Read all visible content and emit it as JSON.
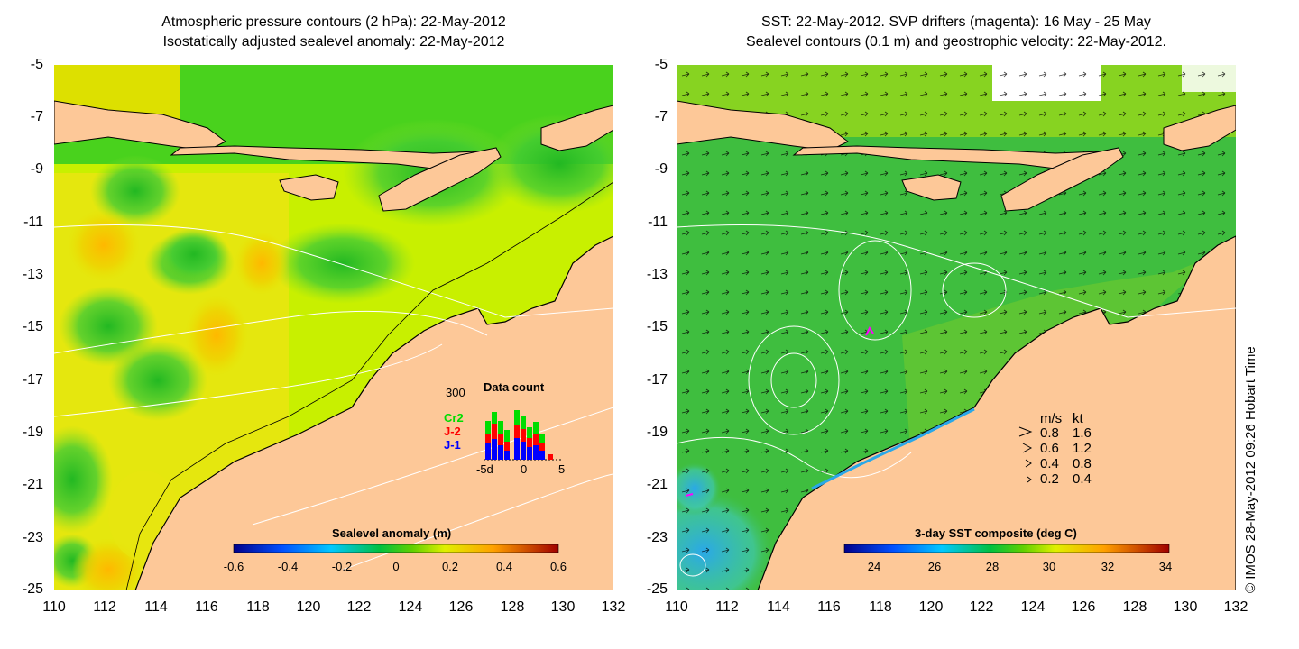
{
  "left_panel": {
    "title_line1": "Atmospheric pressure contours (2 hPa): 22-May-2012",
    "title_line2": "Isostatically adjusted sealevel anomaly: 22-May-2012",
    "colorbar_title": "Sealevel anomaly (m)",
    "colorbar_ticks": [
      "-0.6",
      "-0.4",
      "-0.2",
      "0",
      "0.2",
      "0.4",
      "0.6"
    ],
    "inset": {
      "title": "Data count",
      "ymax_label": "300",
      "series_labels": [
        "Cr2",
        "J-2",
        "J-1"
      ],
      "series_colors": [
        "#00dd00",
        "#ff0000",
        "#0000ff"
      ],
      "x_ticks": [
        "-5d",
        "0",
        "5"
      ]
    }
  },
  "right_panel": {
    "title_line1": "SST: 22-May-2012. SVP drifters (magenta): 16 May - 25 May",
    "title_line2": "Sealevel contours (0.1 m) and geostrophic velocity: 22-May-2012.",
    "colorbar_title": "3-day SST composite (deg C)",
    "colorbar_ticks": [
      "24",
      "26",
      "28",
      "30",
      "32",
      "34"
    ],
    "velocity_legend": {
      "header_ms": "m/s",
      "header_kt": "kt",
      "rows": [
        {
          "ms": "0.8",
          "kt": "1.6"
        },
        {
          "ms": "0.6",
          "kt": "1.2"
        },
        {
          "ms": "0.4",
          "kt": "0.8"
        },
        {
          "ms": "0.2",
          "kt": "0.4"
        }
      ]
    }
  },
  "axes": {
    "y_ticks": [
      "-5",
      "-7",
      "-9",
      "-11",
      "-13",
      "-15",
      "-17",
      "-19",
      "-21",
      "-23",
      "-25"
    ],
    "x_ticks": [
      "110",
      "112",
      "114",
      "116",
      "118",
      "120",
      "122",
      "124",
      "126",
      "128",
      "130",
      "132"
    ]
  },
  "copyright": "© IMOS 28-May-2012 09:26 Hobart Time",
  "colors": {
    "land": "#fdc898",
    "sea_anomaly_base": "#c8f000",
    "sst_base": "#3fbe3f"
  }
}
